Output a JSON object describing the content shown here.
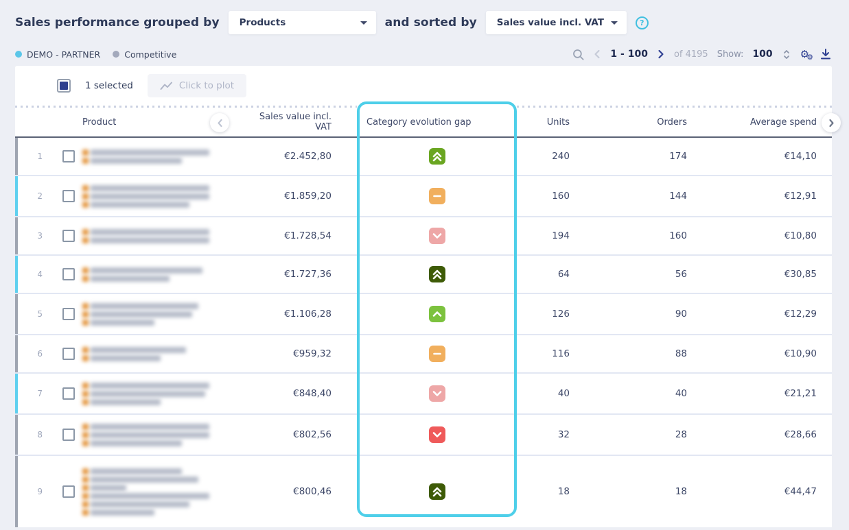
{
  "header": {
    "title_prefix": "Sales performance grouped by",
    "group_by_value": "Products",
    "connector": "and sorted by",
    "sort_by_value": "Sales value incl. VAT",
    "help_glyph": "?"
  },
  "toolbar": {
    "legend": [
      {
        "label": "DEMO - PARTNER",
        "dot_color": "#5BC6E8"
      },
      {
        "label": "Competitive",
        "dot_color": "#A3A9BC"
      }
    ],
    "pagination": {
      "range": "1 - 100",
      "total": "of 4195",
      "show_label": "Show:",
      "show_value": "100"
    }
  },
  "selection_bar": {
    "selected_text": "1 selected",
    "plot_button_label": "Click to plot"
  },
  "table": {
    "columns": [
      "Product",
      "Sales value incl. VAT",
      "Category evolution gap",
      "Units",
      "Orders",
      "Average spend"
    ],
    "highlighted_column": "Category evolution gap",
    "rows": [
      {
        "index": "1",
        "accent": "gray",
        "redacted_lines": [
          0.95,
          0.72
        ],
        "sales_value": "€2.452,80",
        "gap_icon": {
          "type": "double-up",
          "color": "#6AA621"
        },
        "units": "240",
        "orders": "174",
        "average_spend": "€14,10"
      },
      {
        "index": "2",
        "accent": "cyan",
        "redacted_lines": [
          1.0,
          1.0,
          0.78
        ],
        "sales_value": "€1.859,20",
        "gap_icon": {
          "type": "minus",
          "color": "#F1AF5D"
        },
        "units": "160",
        "orders": "144",
        "average_spend": "€12,91"
      },
      {
        "index": "3",
        "accent": "gray",
        "redacted_lines": [
          1.0,
          0.95
        ],
        "sales_value": "€1.728,54",
        "gap_icon": {
          "type": "down",
          "color": "#EEA7A7"
        },
        "units": "194",
        "orders": "160",
        "average_spend": "€10,80"
      },
      {
        "index": "4",
        "accent": "cyan",
        "redacted_lines": [
          0.88,
          0.62
        ],
        "sales_value": "€1.727,36",
        "gap_icon": {
          "type": "double-up",
          "color": "#3E5B07"
        },
        "units": "64",
        "orders": "56",
        "average_spend": "€30,85"
      },
      {
        "index": "5",
        "accent": "gray",
        "redacted_lines": [
          0.85,
          0.8,
          0.5
        ],
        "sales_value": "€1.106,28",
        "gap_icon": {
          "type": "up",
          "color": "#7CC23E"
        },
        "units": "126",
        "orders": "90",
        "average_spend": "€12,29"
      },
      {
        "index": "6",
        "accent": "gray",
        "redacted_lines": [
          0.75,
          0.55
        ],
        "sales_value": "€959,32",
        "gap_icon": {
          "type": "minus",
          "color": "#F1AF5D"
        },
        "units": "116",
        "orders": "88",
        "average_spend": "€10,90"
      },
      {
        "index": "7",
        "accent": "cyan",
        "redacted_lines": [
          1.0,
          0.9,
          0.55
        ],
        "sales_value": "€848,40",
        "gap_icon": {
          "type": "down",
          "color": "#EEA7A7"
        },
        "units": "40",
        "orders": "40",
        "average_spend": "€21,21"
      },
      {
        "index": "8",
        "accent": "gray",
        "redacted_lines": [
          1.0,
          0.95,
          0.72
        ],
        "sales_value": "€802,56",
        "gap_icon": {
          "type": "down",
          "color": "#EF5A5A"
        },
        "units": "32",
        "orders": "28",
        "average_spend": "€28,66"
      },
      {
        "index": "9",
        "accent": "gray",
        "redacted_lines": [
          0.72,
          0.85,
          0.28,
          0.95,
          0.78,
          0.5
        ],
        "sales_value": "€800,46",
        "gap_icon": {
          "type": "double-up",
          "color": "#3E5B07"
        },
        "units": "18",
        "orders": "18",
        "average_spend": "€44,47"
      }
    ]
  },
  "colors": {
    "accents": {
      "gray": "#9FA5B1",
      "cyan": "#5FD0EF"
    },
    "highlight_border": "#4ECFE9",
    "navy_icon": "#2E3F92"
  }
}
